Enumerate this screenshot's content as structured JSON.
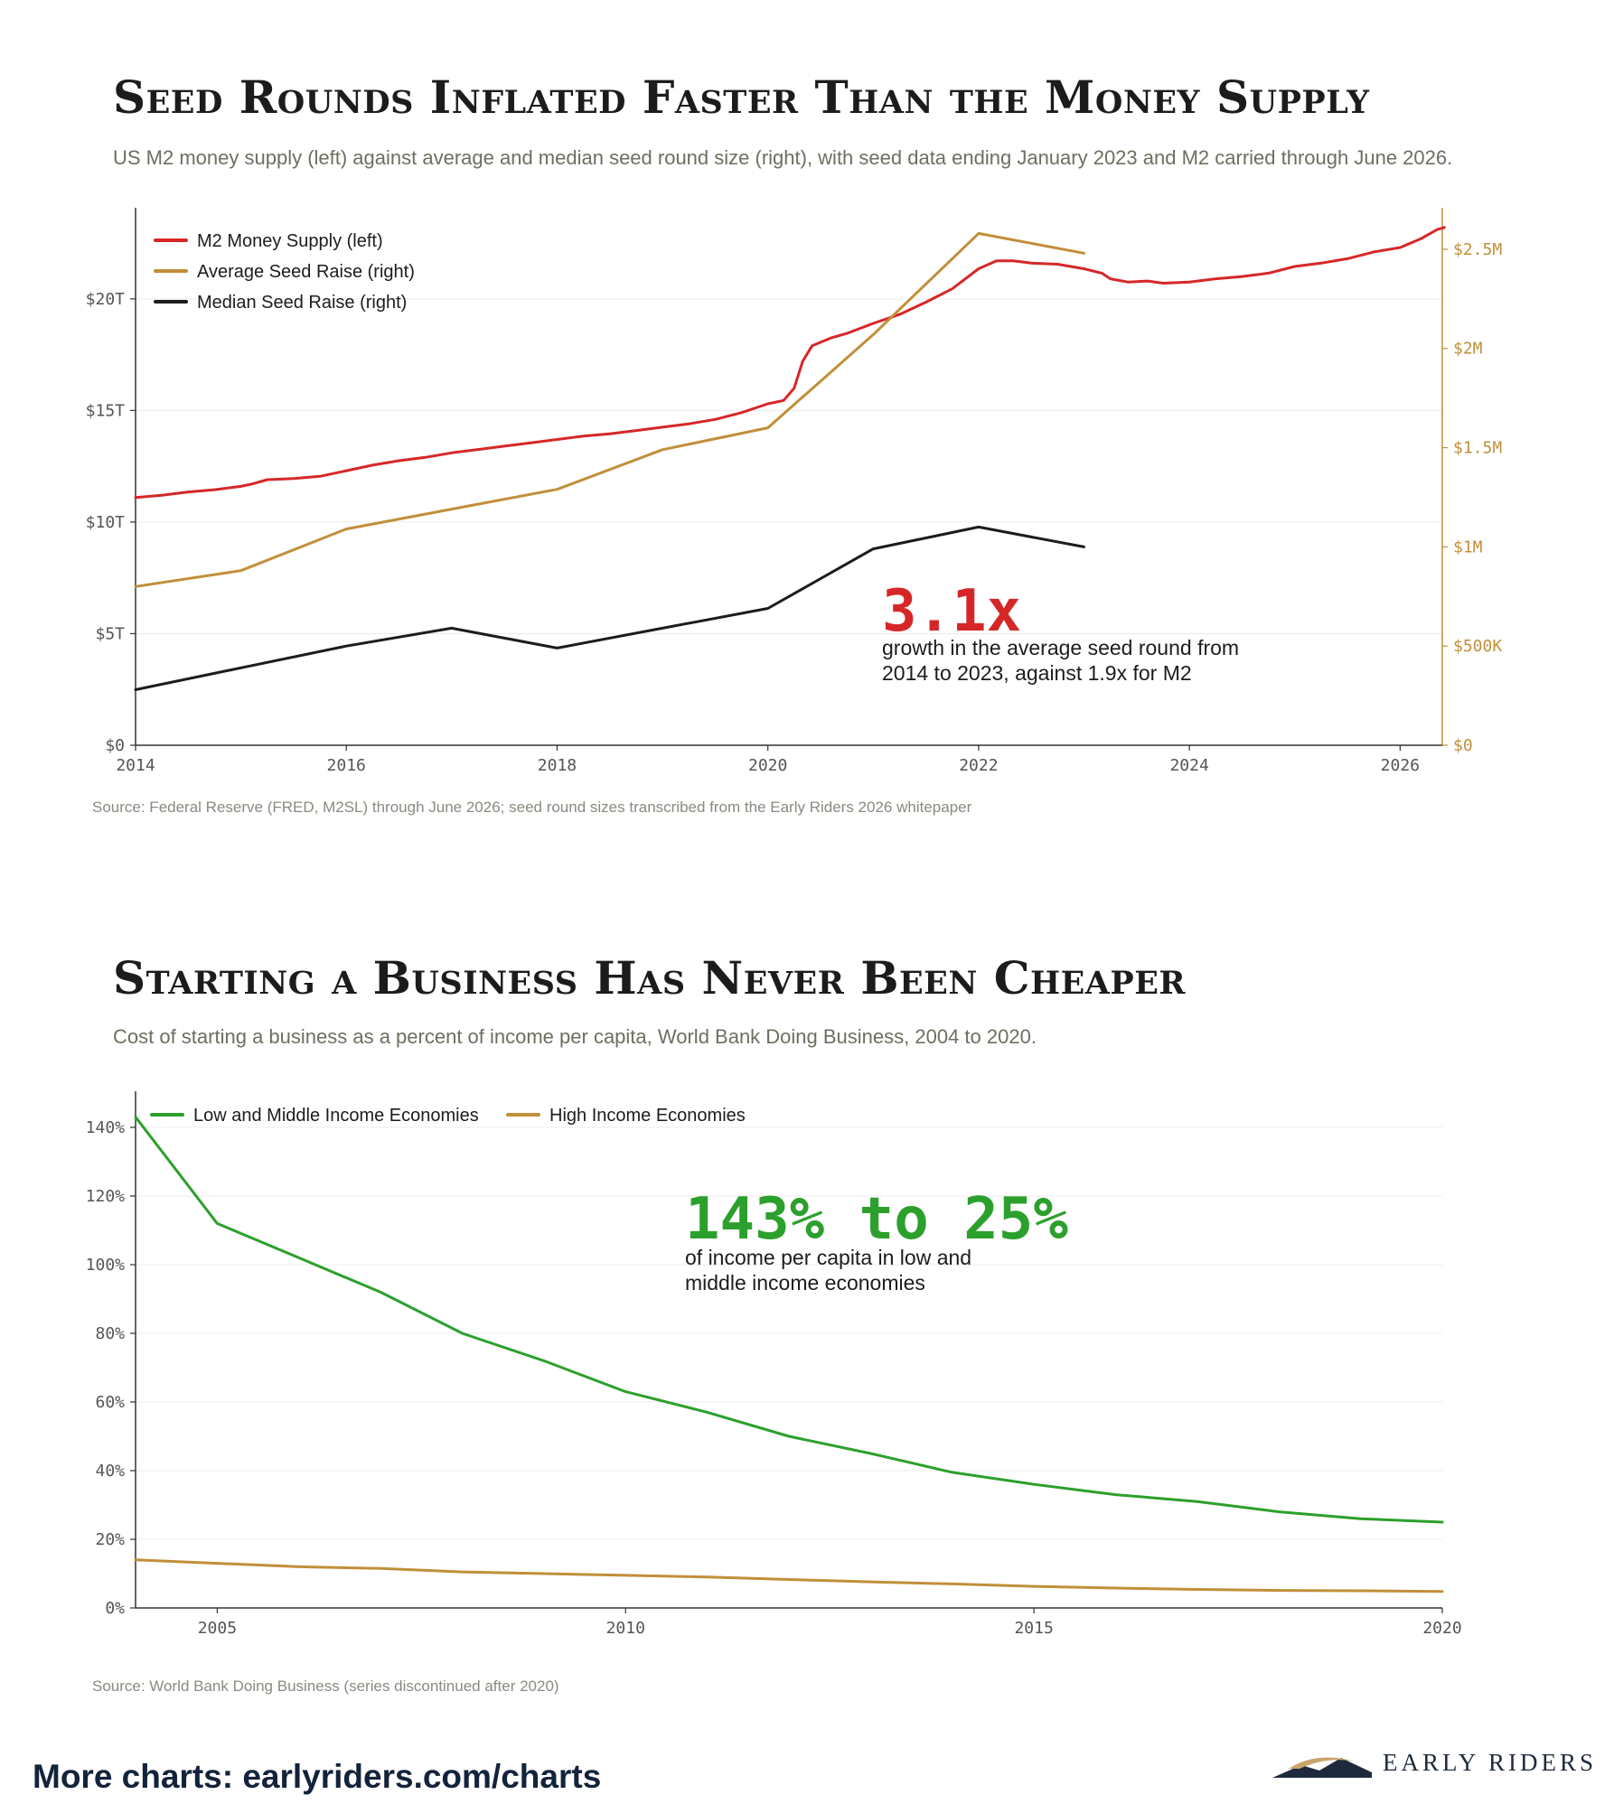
{
  "charts": [
    {
      "title": "Seed Rounds Inflated Faster Than the Money Supply",
      "subtitle": "US M2 money supply (left) against average and median seed round size (right), with seed data ending January 2023 and M2 carried through June 2026.",
      "source": "Source: Federal Reserve (FRED, M2SL) through June 2026; seed round sizes transcribed from the Early Riders 2026 whitepaper",
      "annotation": {
        "big": "3.1x",
        "line1": "growth in the average seed round from",
        "line2": "2014 to 2023, against 1.9x for M2"
      }
    },
    {
      "title": "Starting a Business Has Never Been Cheaper",
      "subtitle": "Cost of starting a business as a percent of income per capita, World Bank Doing Business, 2004 to 2020.",
      "source": "Source: World Bank Doing Business (series discontinued after 2020)",
      "annotation": {
        "big": "143% to 25%",
        "line1": "of income per capita in low and",
        "line2": "middle income economies"
      }
    }
  ],
  "footer": {
    "cta": "More charts: earlyriders.com/charts",
    "brand": "EARLY RIDERS"
  },
  "colors": {
    "red": "#d62728",
    "gold": "#c18f3a",
    "black": "#1c1c1c",
    "green": "#2ca02c",
    "axis": "#333333",
    "grid": "#ececec",
    "navy": "#13233b"
  },
  "chart_data": [
    {
      "type": "line",
      "title": "Seed Rounds Inflated Faster Than the Money Supply",
      "xlim": [
        2014,
        2026.4
      ],
      "x_ticks": [
        2014,
        2016,
        2018,
        2020,
        2022,
        2024,
        2026
      ],
      "y_left": {
        "lim": [
          0,
          24
        ],
        "ticks": [
          0,
          5,
          10,
          15,
          20
        ],
        "tick_labels": [
          "$0",
          "$5T",
          "$10T",
          "$15T",
          "$20T"
        ]
      },
      "y_right": {
        "lim": [
          0,
          2.7
        ],
        "ticks": [
          0,
          0.5,
          1,
          1.5,
          2,
          2.5
        ],
        "tick_labels": [
          "$0",
          "$500K",
          "$1M",
          "$1.5M",
          "$2M",
          "$2.5M"
        ]
      },
      "legend": "top-left",
      "grid": "horizontal",
      "series": [
        {
          "name": "M2 Money Supply (left)",
          "axis": "left",
          "color": "#d62728",
          "unit": "$T",
          "points": [
            [
              2014.0,
              11.1
            ],
            [
              2014.25,
              11.2
            ],
            [
              2014.5,
              11.35
            ],
            [
              2014.75,
              11.45
            ],
            [
              2015.0,
              11.6
            ],
            [
              2015.1,
              11.7
            ],
            [
              2015.25,
              11.9
            ],
            [
              2015.5,
              11.95
            ],
            [
              2015.75,
              12.05
            ],
            [
              2016.0,
              12.3
            ],
            [
              2016.25,
              12.55
            ],
            [
              2016.5,
              12.75
            ],
            [
              2016.75,
              12.9
            ],
            [
              2017.0,
              13.1
            ],
            [
              2017.25,
              13.25
            ],
            [
              2017.5,
              13.4
            ],
            [
              2017.75,
              13.55
            ],
            [
              2018.0,
              13.7
            ],
            [
              2018.25,
              13.85
            ],
            [
              2018.5,
              13.95
            ],
            [
              2018.75,
              14.1
            ],
            [
              2019.0,
              14.25
            ],
            [
              2019.25,
              14.4
            ],
            [
              2019.5,
              14.6
            ],
            [
              2019.75,
              14.9
            ],
            [
              2020.0,
              15.3
            ],
            [
              2020.15,
              15.45
            ],
            [
              2020.25,
              16.0
            ],
            [
              2020.33,
              17.2
            ],
            [
              2020.42,
              17.9
            ],
            [
              2020.6,
              18.25
            ],
            [
              2020.75,
              18.45
            ],
            [
              2021.0,
              18.9
            ],
            [
              2021.25,
              19.3
            ],
            [
              2021.5,
              19.85
            ],
            [
              2021.75,
              20.45
            ],
            [
              2022.0,
              21.35
            ],
            [
              2022.17,
              21.7
            ],
            [
              2022.33,
              21.7
            ],
            [
              2022.5,
              21.6
            ],
            [
              2022.75,
              21.55
            ],
            [
              2023.0,
              21.35
            ],
            [
              2023.17,
              21.15
            ],
            [
              2023.25,
              20.9
            ],
            [
              2023.42,
              20.75
            ],
            [
              2023.6,
              20.8
            ],
            [
              2023.75,
              20.7
            ],
            [
              2024.0,
              20.75
            ],
            [
              2024.25,
              20.9
            ],
            [
              2024.5,
              21.0
            ],
            [
              2024.75,
              21.15
            ],
            [
              2025.0,
              21.45
            ],
            [
              2025.25,
              21.6
            ],
            [
              2025.5,
              21.8
            ],
            [
              2025.75,
              22.1
            ],
            [
              2026.0,
              22.3
            ],
            [
              2026.2,
              22.7
            ],
            [
              2026.35,
              23.1
            ],
            [
              2026.42,
              23.2
            ]
          ]
        },
        {
          "name": "Average Seed Raise (right)",
          "axis": "right",
          "color": "#c18f3a",
          "unit": "$M",
          "points": [
            [
              2014.0,
              0.8
            ],
            [
              2015.0,
              0.88
            ],
            [
              2016.0,
              1.09
            ],
            [
              2017.0,
              1.19
            ],
            [
              2018.0,
              1.29
            ],
            [
              2019.0,
              1.49
            ],
            [
              2020.0,
              1.6
            ],
            [
              2021.0,
              2.07
            ],
            [
              2022.0,
              2.58
            ],
            [
              2023.0,
              2.48
            ]
          ]
        },
        {
          "name": "Median Seed Raise (right)",
          "axis": "right",
          "color": "#1c1c1c",
          "unit": "$M",
          "points": [
            [
              2014.0,
              0.28
            ],
            [
              2015.0,
              0.39
            ],
            [
              2016.0,
              0.5
            ],
            [
              2017.0,
              0.59
            ],
            [
              2018.0,
              0.49
            ],
            [
              2019.0,
              0.59
            ],
            [
              2020.0,
              0.69
            ],
            [
              2021.0,
              0.99
            ],
            [
              2022.0,
              1.1
            ],
            [
              2023.0,
              1.0
            ]
          ]
        }
      ]
    },
    {
      "type": "line",
      "title": "Starting a Business Has Never Been Cheaper",
      "xlim": [
        2004,
        2020
      ],
      "x_ticks": [
        2005,
        2010,
        2015,
        2020
      ],
      "y_left": {
        "lim": [
          0,
          150
        ],
        "ticks": [
          0,
          20,
          40,
          60,
          80,
          100,
          120,
          140
        ],
        "tick_labels": [
          "0%",
          "20%",
          "40%",
          "60%",
          "80%",
          "100%",
          "120%",
          "140%"
        ]
      },
      "legend": "top-left",
      "grid": "horizontal",
      "series": [
        {
          "name": "Low and Middle Income Economies",
          "axis": "left",
          "color": "#2ca02c",
          "unit": "%",
          "points": [
            [
              2004,
              143
            ],
            [
              2005,
              112
            ],
            [
              2006,
              102
            ],
            [
              2007,
              92
            ],
            [
              2008,
              80
            ],
            [
              2009,
              72
            ],
            [
              2010,
              63
            ],
            [
              2011,
              57
            ],
            [
              2012,
              50
            ],
            [
              2013,
              45
            ],
            [
              2014,
              39.5
            ],
            [
              2015,
              36
            ],
            [
              2016,
              33
            ],
            [
              2017,
              31
            ],
            [
              2018,
              28
            ],
            [
              2019,
              26
            ],
            [
              2020,
              25
            ]
          ]
        },
        {
          "name": "High Income Economies",
          "axis": "left",
          "color": "#c18f3a",
          "unit": "%",
          "points": [
            [
              2004,
              14
            ],
            [
              2005,
              13
            ],
            [
              2006,
              12
            ],
            [
              2007,
              11.5
            ],
            [
              2008,
              10.5
            ],
            [
              2009,
              10
            ],
            [
              2010,
              9.5
            ],
            [
              2011,
              9
            ],
            [
              2012,
              8.3
            ],
            [
              2013,
              7.6
            ],
            [
              2014,
              7
            ],
            [
              2015,
              6.3
            ],
            [
              2016,
              5.8
            ],
            [
              2017,
              5.4
            ],
            [
              2018,
              5.1
            ],
            [
              2019,
              5
            ],
            [
              2020,
              4.8
            ]
          ]
        }
      ]
    }
  ]
}
